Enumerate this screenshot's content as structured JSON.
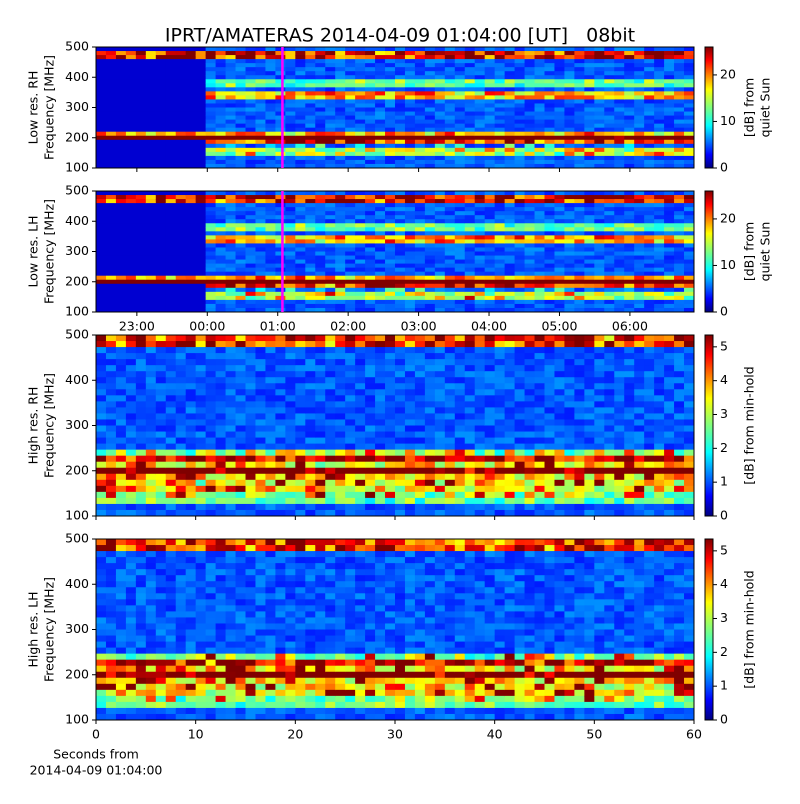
{
  "figure_title": "IPRT/AMATERAS 2014-04-09 01:04:00 [UT]   08bit",
  "chart_data": [
    {
      "type": "spectrogram",
      "ylabel": [
        "Low res. RH",
        "Frequency [MHz]"
      ],
      "ylim": [
        100,
        500
      ],
      "yticks": [
        100,
        200,
        300,
        400,
        500
      ],
      "xlim": [
        -1.58,
        6.91
      ],
      "xticks": [
        {
          "value": -1,
          "label": "23:00"
        },
        {
          "value": 0,
          "label": "00:00"
        },
        {
          "value": 1,
          "label": "01:00"
        },
        {
          "value": 2,
          "label": "02:00"
        },
        {
          "value": 3,
          "label": "03:00"
        },
        {
          "value": 4,
          "label": "04:00"
        },
        {
          "value": 5,
          "label": "05:00"
        },
        {
          "value": 6,
          "label": "06:00"
        }
      ],
      "show_xticklabels": false,
      "marker": {
        "value": 1.0667,
        "color": "#ff00ff"
      },
      "colorbar": {
        "label": [
          "[dB] from",
          "quiet Sun"
        ],
        "lim": [
          0,
          26
        ],
        "ticks": [
          0,
          10,
          20
        ]
      }
    },
    {
      "type": "spectrogram",
      "ylabel": [
        "Low res. LH",
        "Frequency [MHz]"
      ],
      "ylim": [
        100,
        500
      ],
      "yticks": [
        100,
        200,
        300,
        400,
        500
      ],
      "xlim": [
        -1.58,
        6.91
      ],
      "xticks": [
        {
          "value": -1,
          "label": "23:00"
        },
        {
          "value": 0,
          "label": "00:00"
        },
        {
          "value": 1,
          "label": "01:00"
        },
        {
          "value": 2,
          "label": "02:00"
        },
        {
          "value": 3,
          "label": "03:00"
        },
        {
          "value": 4,
          "label": "04:00"
        },
        {
          "value": 5,
          "label": "05:00"
        },
        {
          "value": 6,
          "label": "06:00"
        }
      ],
      "show_xticklabels": true,
      "marker": {
        "value": 1.0667,
        "color": "#ff00ff"
      },
      "colorbar": {
        "label": [
          "[dB] from",
          "quiet Sun"
        ],
        "lim": [
          0,
          26
        ],
        "ticks": [
          0,
          10,
          20
        ]
      }
    },
    {
      "type": "spectrogram",
      "ylabel": [
        "High res. RH",
        "Frequency [MHz]"
      ],
      "ylim": [
        100,
        500
      ],
      "yticks": [
        100,
        200,
        300,
        400,
        500
      ],
      "xlim": [
        0,
        60
      ],
      "xticks": [
        0,
        10,
        20,
        30,
        40,
        50,
        60
      ],
      "show_xticklabels": false,
      "colorbar": {
        "label": [
          "[dB] from min-hold"
        ],
        "lim": [
          0,
          5.35
        ],
        "ticks": [
          0,
          1,
          2,
          3,
          4,
          5
        ]
      }
    },
    {
      "type": "spectrogram",
      "ylabel": [
        "High res. LH",
        "Frequency [MHz]"
      ],
      "ylim": [
        100,
        500
      ],
      "yticks": [
        100,
        200,
        300,
        400,
        500
      ],
      "xlim": [
        0,
        60
      ],
      "xticks": [
        0,
        10,
        20,
        30,
        40,
        50,
        60
      ],
      "show_xticklabels": true,
      "xlabel": [
        "Seconds from",
        "2014-04-09 01:04:00"
      ],
      "colorbar": {
        "label": [
          "[dB] from min-hold"
        ],
        "lim": [
          0,
          5.35
        ],
        "ticks": [
          0,
          1,
          2,
          3,
          4,
          5
        ]
      }
    }
  ]
}
